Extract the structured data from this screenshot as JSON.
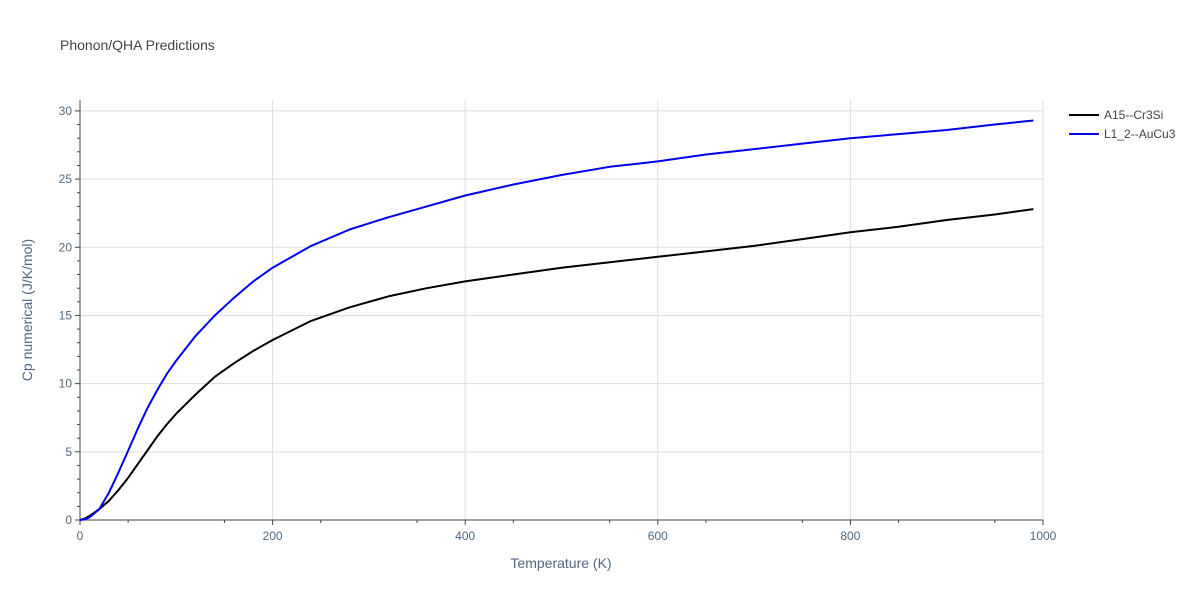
{
  "chart_data": {
    "type": "line",
    "title": "Phonon/QHA Predictions",
    "xlabel": "Temperature (K)",
    "ylabel": "Cp numerical (J/K/mol)",
    "xlim": [
      0,
      1000
    ],
    "ylim": [
      0,
      30.8
    ],
    "xticks": [
      0,
      200,
      400,
      600,
      800,
      1000
    ],
    "yticks": [
      0,
      5,
      10,
      15,
      20,
      25,
      30
    ],
    "grid": true,
    "legend_position": "top-right",
    "series": [
      {
        "name": "A15--Cr3Si",
        "color": "#000000",
        "x": [
          0,
          5,
          10,
          20,
          30,
          40,
          50,
          60,
          70,
          80,
          90,
          100,
          120,
          140,
          160,
          180,
          200,
          240,
          280,
          320,
          360,
          400,
          450,
          500,
          550,
          600,
          650,
          700,
          750,
          800,
          850,
          900,
          950,
          990
        ],
        "y": [
          0,
          0.1,
          0.3,
          0.8,
          1.4,
          2.2,
          3.1,
          4.1,
          5.1,
          6.1,
          7.0,
          7.8,
          9.2,
          10.5,
          11.5,
          12.4,
          13.2,
          14.6,
          15.6,
          16.4,
          17.0,
          17.5,
          18.0,
          18.5,
          18.9,
          19.3,
          19.7,
          20.1,
          20.6,
          21.1,
          21.5,
          22.0,
          22.4,
          22.8
        ]
      },
      {
        "name": "L1_2--AuCu3",
        "color": "#0000ee",
        "x": [
          0,
          5,
          10,
          20,
          30,
          40,
          50,
          60,
          70,
          80,
          90,
          100,
          120,
          140,
          160,
          180,
          200,
          240,
          280,
          320,
          360,
          400,
          450,
          500,
          550,
          600,
          650,
          700,
          750,
          800,
          850,
          900,
          950,
          990
        ],
        "y": [
          0,
          0.05,
          0.2,
          0.8,
          2.0,
          3.5,
          5.1,
          6.7,
          8.2,
          9.5,
          10.7,
          11.7,
          13.5,
          15.0,
          16.3,
          17.5,
          18.5,
          20.1,
          21.3,
          22.2,
          23.0,
          23.8,
          24.6,
          25.3,
          25.9,
          26.3,
          26.8,
          27.2,
          27.6,
          28.0,
          28.3,
          28.6,
          29.0,
          29.3
        ]
      }
    ]
  }
}
